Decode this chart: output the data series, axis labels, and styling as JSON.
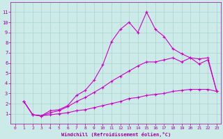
{
  "background_color": "#cceae7",
  "line_color": "#cc00cc",
  "grid_color": "#aad4d0",
  "xlabel": "Windchill (Refroidissement éolien,°C)",
  "xlabel_color": "#990099",
  "tick_color": "#990099",
  "xlim": [
    -0.5,
    23.5
  ],
  "ylim": [
    0,
    12
  ],
  "xticks": [
    0,
    1,
    2,
    3,
    4,
    5,
    6,
    7,
    8,
    9,
    10,
    11,
    12,
    13,
    14,
    15,
    16,
    17,
    18,
    19,
    20,
    21,
    22,
    23
  ],
  "yticks": [
    1,
    2,
    3,
    4,
    5,
    6,
    7,
    8,
    9,
    10,
    11
  ],
  "line1_x": [
    1,
    2,
    3,
    4,
    5,
    6,
    7,
    8,
    9,
    10,
    11,
    12,
    13,
    14,
    15,
    16,
    17,
    18,
    19,
    20,
    21,
    22,
    23
  ],
  "line1_y": [
    2.2,
    0.9,
    0.8,
    1.3,
    1.4,
    1.8,
    2.8,
    3.3,
    4.3,
    5.8,
    8.1,
    9.3,
    10.0,
    9.0,
    11.0,
    9.3,
    8.6,
    7.4,
    6.9,
    6.5,
    5.9,
    6.3,
    3.2
  ],
  "line2_x": [
    1,
    2,
    3,
    4,
    5,
    6,
    7,
    8,
    9,
    10,
    11,
    12,
    13,
    14,
    15,
    16,
    17,
    18,
    19,
    20,
    21,
    22,
    23
  ],
  "line2_y": [
    2.2,
    0.9,
    0.8,
    1.1,
    1.3,
    1.7,
    2.2,
    2.6,
    3.1,
    3.6,
    4.2,
    4.7,
    5.2,
    5.7,
    6.1,
    6.1,
    6.3,
    6.5,
    6.1,
    6.5,
    6.4,
    6.5,
    3.2
  ],
  "line3_x": [
    1,
    2,
    3,
    4,
    5,
    6,
    7,
    8,
    9,
    10,
    11,
    12,
    13,
    14,
    15,
    16,
    17,
    18,
    19,
    20,
    21,
    22,
    23
  ],
  "line3_y": [
    2.2,
    0.9,
    0.8,
    0.9,
    1.0,
    1.1,
    1.3,
    1.4,
    1.6,
    1.8,
    2.0,
    2.2,
    2.5,
    2.6,
    2.8,
    2.9,
    3.0,
    3.2,
    3.3,
    3.4,
    3.4,
    3.4,
    3.2
  ],
  "marker": "+",
  "markersize": 3,
  "linewidth": 0.8,
  "xlabel_fontsize": 5.0,
  "tick_fontsize_x": 4.5,
  "tick_fontsize_y": 5.0
}
